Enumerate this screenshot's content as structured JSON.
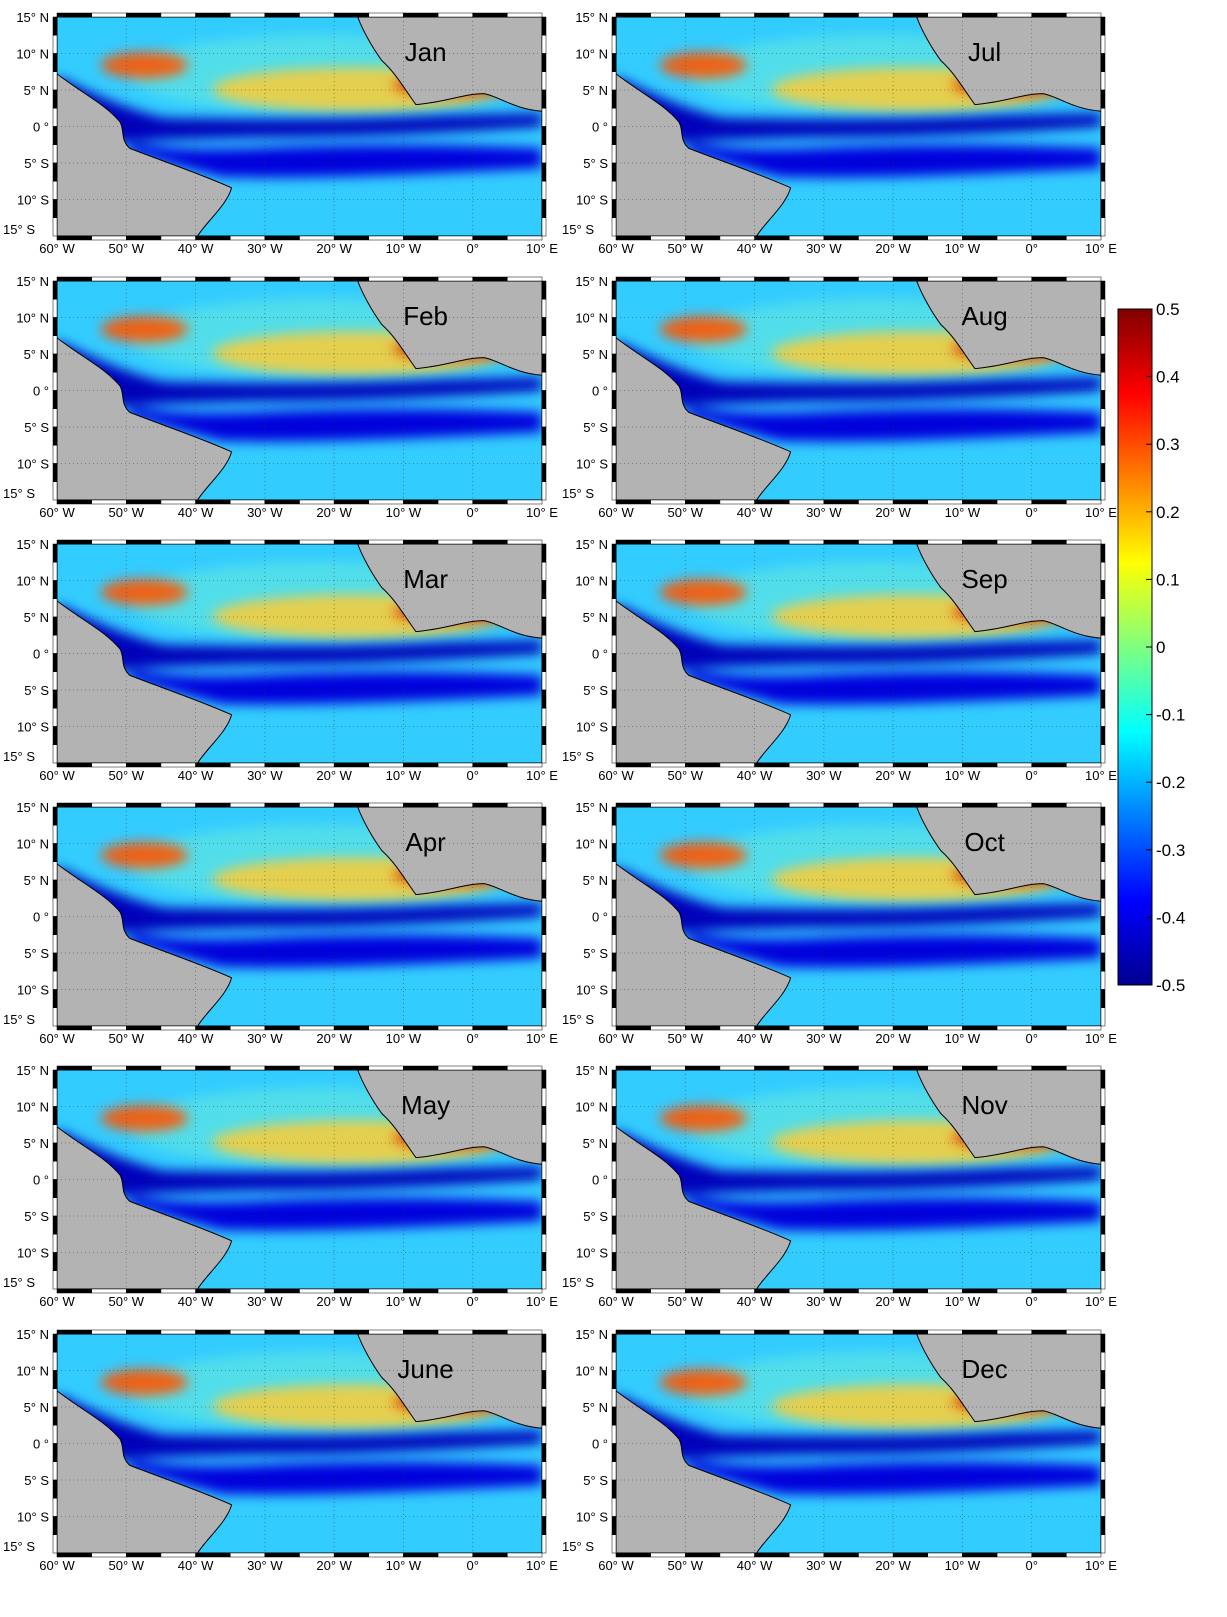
{
  "figure": {
    "months": [
      "Jan",
      "Jul",
      "Feb",
      "Aug",
      "Mar",
      "Sep",
      "Apr",
      "Oct",
      "May",
      "Nov",
      "June",
      "Dec"
    ],
    "lat_labels": [
      "15° N",
      "10° N",
      "5° N",
      "0 °",
      "5° S",
      "10° S",
      "15° S"
    ],
    "lon_labels": [
      "60° W",
      "50° W",
      "40° W",
      "30° W",
      "20° W",
      "10° W",
      "0°",
      "10° E"
    ],
    "colorbar_ticks": [
      "0.5",
      "0.4",
      "0.3",
      "0.2",
      "0.1",
      "0",
      "-0.1",
      "-0.2",
      "-0.3",
      "-0.4",
      "-0.5"
    ],
    "colorbar_range": [
      -0.5,
      0.5
    ],
    "land_color": "#b3b3b3",
    "colormap": "jet"
  }
}
